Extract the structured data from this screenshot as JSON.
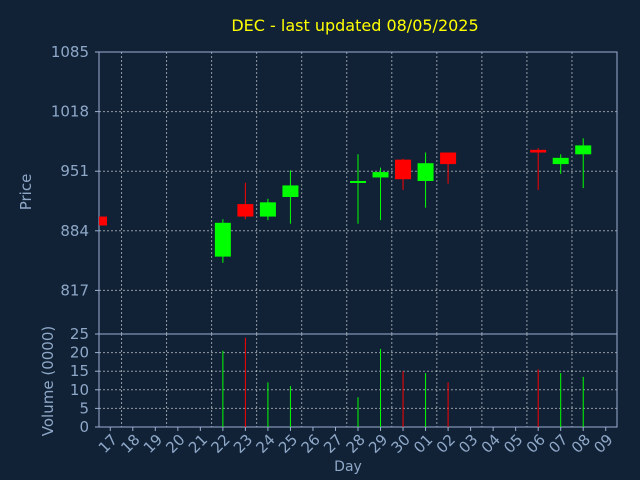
{
  "chart_data": {
    "type": "candlestick",
    "title": "DEC - last updated 08/05/2025",
    "xlabel": "Day",
    "price_panel": {
      "ylabel": "Price",
      "yticks": [
        817,
        884,
        951,
        1018,
        1085
      ],
      "ylim": [
        768,
        1085
      ]
    },
    "volume_panel": {
      "ylabel": "Volume (0000)",
      "yticks": [
        0,
        5,
        10,
        15,
        20,
        25
      ],
      "ylim": [
        0,
        25
      ]
    },
    "x_tick_labels": [
      "17",
      "18",
      "19",
      "20",
      "21",
      "22",
      "23",
      "24",
      "25",
      "26",
      "27",
      "28",
      "29",
      "30",
      "01",
      "02",
      "03",
      "04",
      "05",
      "06",
      "07",
      "08",
      "09"
    ],
    "candles": [
      {
        "day": "17",
        "open": 900,
        "close": 890,
        "high": 900,
        "low": 890,
        "volume": 0
      },
      {
        "day": "22",
        "open": 855,
        "close": 893,
        "high": 897,
        "low": 848,
        "volume": 20.5
      },
      {
        "day": "23",
        "open": 914,
        "close": 900,
        "high": 938,
        "low": 897,
        "volume": 24
      },
      {
        "day": "24",
        "open": 900,
        "close": 916,
        "high": 920,
        "low": 896,
        "volume": 12
      },
      {
        "day": "25",
        "open": 922,
        "close": 935,
        "high": 952,
        "low": 892,
        "volume": 11
      },
      {
        "day": "28",
        "open": 940,
        "close": 940,
        "high": 970,
        "low": 892,
        "volume": 8
      },
      {
        "day": "29",
        "open": 944,
        "close": 950,
        "high": 955,
        "low": 896,
        "volume": 21
      },
      {
        "day": "30",
        "open": 964,
        "close": 942,
        "high": 965,
        "low": 930,
        "volume": 15
      },
      {
        "day": "01",
        "open": 940,
        "close": 960,
        "high": 972,
        "low": 910,
        "volume": 14.5
      },
      {
        "day": "02",
        "open": 972,
        "close": 959,
        "high": 972,
        "low": 937,
        "volume": 12
      },
      {
        "day": "06",
        "open": 975,
        "close": 972,
        "high": 977,
        "low": 930,
        "volume": 15.5
      },
      {
        "day": "07",
        "open": 959,
        "close": 966,
        "high": 970,
        "low": 948,
        "volume": 14.5
      },
      {
        "day": "08",
        "open": 970,
        "close": 980,
        "high": 988,
        "low": 932,
        "volume": 13.5
      }
    ],
    "colors": {
      "up": "#00ff00",
      "down": "#ff0000",
      "background": "#112236",
      "grid": "#ffffff",
      "title": "#ffff00",
      "axis_text": "#8fa8c8"
    },
    "grid": true
  }
}
